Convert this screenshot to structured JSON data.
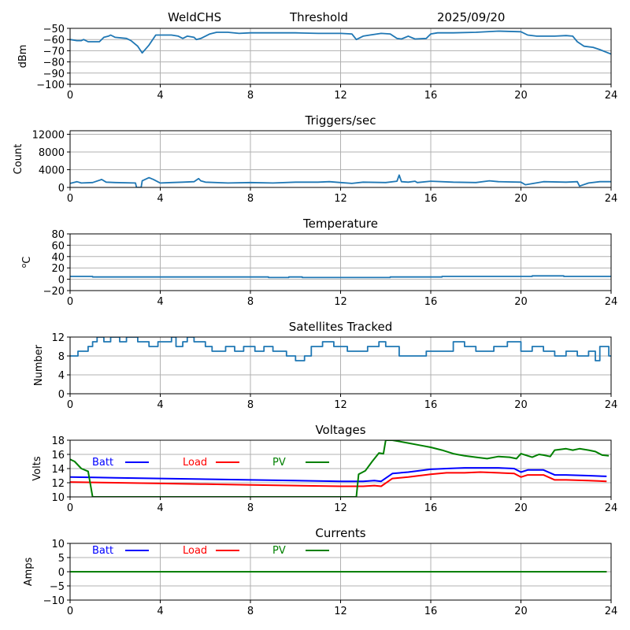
{
  "header": {
    "station": "WeldCHS",
    "mode": "Threshold",
    "date": "2025/09/20"
  },
  "chart_data": [
    {
      "id": "signal",
      "type": "line",
      "title": "",
      "xlabel": "",
      "ylabel": "dBm",
      "xlim": [
        0,
        24
      ],
      "ylim": [
        -100,
        -50
      ],
      "xticks": [
        0,
        4,
        8,
        12,
        16,
        20,
        24
      ],
      "yticks": [
        -100,
        -90,
        -80,
        -70,
        -60,
        -50
      ],
      "ytick_labels": [
        "−100",
        "−90",
        "−80",
        "−70",
        "−60",
        "−50"
      ],
      "grid": true,
      "series": [
        {
          "name": "signal",
          "color": "#1f77b4",
          "x": [
            0,
            0.3,
            0.5,
            0.6,
            0.8,
            1.3,
            1.5,
            1.7,
            1.8,
            2.0,
            2.5,
            2.7,
            3.0,
            3.2,
            3.5,
            3.8,
            4.0,
            4.5,
            4.8,
            5.0,
            5.2,
            5.5,
            5.6,
            5.8,
            6.0,
            6.2,
            6.5,
            7.0,
            7.5,
            8.0,
            9.0,
            10.0,
            11.0,
            12.0,
            12.5,
            12.7,
            13.0,
            13.3,
            13.8,
            14.2,
            14.5,
            14.7,
            15.0,
            15.3,
            15.8,
            16.0,
            16.3,
            17.0,
            18.0,
            19.0,
            20.0,
            20.3,
            20.7,
            21.5,
            22.0,
            22.3,
            22.5,
            22.8,
            23.2,
            23.5,
            24.0
          ],
          "y": [
            -60,
            -61,
            -61,
            -60,
            -62,
            -62,
            -58,
            -57,
            -56,
            -58,
            -59,
            -61,
            -66,
            -72,
            -65,
            -56,
            -56,
            -56,
            -57,
            -59,
            -57,
            -58,
            -60,
            -59,
            -57,
            -55,
            -53.5,
            -53.5,
            -54.5,
            -54,
            -54,
            -54,
            -54.5,
            -54.5,
            -55,
            -60,
            -57,
            -56,
            -54.5,
            -55,
            -59,
            -59.5,
            -57,
            -59.5,
            -59,
            -55,
            -54,
            -54,
            -53.5,
            -52.5,
            -53,
            -56,
            -57,
            -57,
            -56.5,
            -57,
            -62,
            -66,
            -67,
            -69,
            -73
          ]
        }
      ]
    },
    {
      "id": "triggers",
      "type": "line",
      "title": "Triggers/sec",
      "xlabel": "",
      "ylabel": "Count",
      "xlim": [
        0,
        24
      ],
      "ylim": [
        0,
        12800
      ],
      "xticks": [
        0,
        4,
        8,
        12,
        16,
        20,
        24
      ],
      "yticks": [
        0,
        4000,
        8000,
        12000
      ],
      "ytick_labels": [
        "0",
        "4000",
        "8000",
        "12000"
      ],
      "grid": true,
      "series": [
        {
          "name": "triggers",
          "color": "#1f77b4",
          "x": [
            0,
            0.3,
            0.5,
            1.0,
            1.4,
            1.6,
            2.0,
            2.9,
            2.95,
            3.15,
            3.2,
            3.5,
            3.7,
            4.0,
            4.5,
            5.0,
            5.5,
            5.7,
            5.8,
            6.0,
            7.0,
            8.0,
            9.0,
            10.0,
            11.0,
            11.5,
            12.0,
            12.5,
            13.0,
            14.0,
            14.5,
            14.6,
            14.7,
            15.0,
            15.3,
            15.4,
            16.0,
            17.0,
            18.0,
            18.6,
            19.0,
            20.0,
            20.2,
            21.0,
            22.0,
            22.5,
            22.6,
            23.0,
            23.5,
            24.0
          ],
          "y": [
            900,
            1300,
            1000,
            1100,
            1800,
            1200,
            1100,
            1000,
            0,
            0,
            1500,
            2200,
            1800,
            1000,
            1100,
            1200,
            1300,
            2000,
            1500,
            1200,
            1000,
            1100,
            1000,
            1200,
            1200,
            1300,
            1100,
            900,
            1200,
            1100,
            1400,
            2800,
            1300,
            1200,
            1400,
            1100,
            1400,
            1200,
            1100,
            1500,
            1300,
            1200,
            600,
            1300,
            1200,
            1300,
            300,
            1000,
            1300,
            1300
          ]
        }
      ]
    },
    {
      "id": "temperature",
      "type": "line",
      "title": "Temperature",
      "xlabel": "",
      "ylabel": "°C",
      "ylabel_prefix": "o",
      "ylabel_main": "C",
      "xlim": [
        0,
        24
      ],
      "ylim": [
        -20,
        80
      ],
      "xticks": [
        0,
        4,
        8,
        12,
        16,
        20,
        24
      ],
      "yticks": [
        -20,
        0,
        20,
        40,
        60,
        80
      ],
      "ytick_labels": [
        "−20",
        "0",
        "20",
        "40",
        "60",
        "80"
      ],
      "grid": true,
      "series": [
        {
          "name": "temperature",
          "color": "#1f77b4",
          "x": [
            0,
            1.0,
            1.0,
            8.8,
            8.8,
            9.7,
            9.7,
            10.3,
            10.3,
            14.2,
            14.2,
            16.5,
            16.5,
            20.5,
            20.5,
            21.9,
            21.9,
            24
          ],
          "y": [
            5,
            5,
            4,
            4,
            3,
            3,
            4,
            4,
            3,
            3,
            4,
            4,
            5,
            5,
            6,
            6,
            5,
            5
          ]
        }
      ]
    },
    {
      "id": "satellites",
      "type": "line",
      "title": "Satellites Tracked",
      "xlabel": "",
      "ylabel": "Number",
      "xlim": [
        0,
        24
      ],
      "ylim": [
        0,
        12
      ],
      "xticks": [
        0,
        4,
        8,
        12,
        16,
        20,
        24
      ],
      "yticks": [
        0,
        4,
        8,
        12
      ],
      "ytick_labels": [
        "0",
        "4",
        "8",
        "12"
      ],
      "grid": true,
      "series": [
        {
          "name": "satellites",
          "color": "#1f77b4",
          "x": [
            0,
            0.35,
            0.35,
            0.8,
            0.8,
            1.0,
            1.0,
            1.2,
            1.2,
            1.5,
            1.5,
            1.8,
            1.8,
            2.2,
            2.2,
            2.5,
            2.5,
            3.0,
            3.0,
            3.5,
            3.5,
            3.9,
            3.9,
            4.5,
            4.5,
            4.7,
            4.7,
            5.0,
            5.0,
            5.2,
            5.2,
            5.5,
            5.5,
            6.0,
            6.0,
            6.3,
            6.3,
            6.9,
            6.9,
            7.3,
            7.3,
            7.7,
            7.7,
            8.2,
            8.2,
            8.6,
            8.6,
            9.0,
            9.0,
            9.6,
            9.6,
            10.0,
            10.0,
            10.4,
            10.4,
            10.7,
            10.7,
            11.2,
            11.2,
            11.7,
            11.7,
            12.3,
            12.3,
            13.2,
            13.2,
            13.7,
            13.7,
            14.0,
            14.0,
            14.6,
            14.6,
            15.8,
            15.8,
            16.6,
            16.6,
            17.0,
            17.0,
            17.5,
            17.5,
            18.0,
            18.0,
            18.8,
            18.8,
            19.4,
            19.4,
            20.0,
            20.0,
            20.5,
            20.5,
            21.0,
            21.0,
            21.5,
            21.5,
            22.0,
            22.0,
            22.5,
            22.5,
            23.0,
            23.0,
            23.3,
            23.3,
            23.5,
            23.5,
            23.9,
            23.9,
            24.0
          ],
          "y": [
            8,
            8,
            9,
            9,
            10,
            10,
            11,
            11,
            12,
            12,
            11,
            11,
            12,
            12,
            11,
            11,
            12,
            12,
            11,
            11,
            10,
            10,
            11,
            11,
            12,
            12,
            10,
            10,
            11,
            11,
            12,
            12,
            11,
            11,
            10,
            10,
            9,
            9,
            10,
            10,
            9,
            9,
            10,
            10,
            9,
            9,
            10,
            10,
            9,
            9,
            8,
            8,
            7,
            7,
            8,
            8,
            10,
            10,
            11,
            11,
            10,
            10,
            9,
            9,
            10,
            10,
            11,
            11,
            10,
            10,
            8,
            8,
            9,
            9,
            9,
            9,
            11,
            11,
            10,
            10,
            9,
            9,
            10,
            10,
            11,
            11,
            9,
            9,
            10,
            10,
            9,
            9,
            8,
            8,
            9,
            9,
            8,
            8,
            9,
            9,
            7,
            7,
            10,
            10,
            8,
            8
          ]
        }
      ]
    },
    {
      "id": "voltages",
      "type": "line",
      "title": "Voltages",
      "xlabel": "",
      "ylabel": "Volts",
      "xlim": [
        0,
        24
      ],
      "ylim": [
        10,
        18
      ],
      "xticks": [
        0,
        4,
        8,
        12,
        16,
        20,
        24
      ],
      "yticks": [
        10,
        12,
        14,
        16,
        18
      ],
      "ytick_labels": [
        "10",
        "12",
        "14",
        "16",
        "18"
      ],
      "grid": true,
      "legend": {
        "placement": "top-left-inline",
        "entries": [
          "Batt",
          "Load",
          "PV"
        ]
      },
      "series": [
        {
          "name": "Batt",
          "color": "#0000ff",
          "x": [
            0,
            2,
            4,
            6,
            8,
            10,
            12,
            13.0,
            13.5,
            13.8,
            14.3,
            15.0,
            16.0,
            16.7,
            17.5,
            18.2,
            19.0,
            19.7,
            20.0,
            20.3,
            21.0,
            21.5,
            22.0,
            23.0,
            23.8
          ],
          "y": [
            12.8,
            12.7,
            12.6,
            12.5,
            12.4,
            12.3,
            12.2,
            12.2,
            12.3,
            12.2,
            13.3,
            13.5,
            13.9,
            14.0,
            14.1,
            14.1,
            14.1,
            14.0,
            13.5,
            13.8,
            13.8,
            13.1,
            13.1,
            13.0,
            12.9
          ]
        },
        {
          "name": "Load",
          "color": "#ff0000",
          "x": [
            0,
            2,
            4,
            6,
            8,
            10,
            12,
            13.0,
            13.5,
            13.8,
            14.3,
            15.0,
            16.0,
            16.7,
            17.5,
            18.2,
            19.0,
            19.7,
            20.0,
            20.3,
            21.0,
            21.5,
            22.0,
            23.0,
            23.8
          ],
          "y": [
            12.1,
            12.0,
            11.9,
            11.8,
            11.7,
            11.6,
            11.5,
            11.5,
            11.6,
            11.5,
            12.6,
            12.8,
            13.2,
            13.4,
            13.4,
            13.5,
            13.4,
            13.3,
            12.8,
            13.1,
            13.1,
            12.4,
            12.4,
            12.3,
            12.2
          ]
        },
        {
          "name": "PV",
          "color": "#008000",
          "x": [
            0,
            0.2,
            0.5,
            0.8,
            1.0,
            12.7,
            12.8,
            13.1,
            13.4,
            13.7,
            13.9,
            14.0,
            14.3,
            15.0,
            15.5,
            16.0,
            16.5,
            17.0,
            17.5,
            18.0,
            18.5,
            19.0,
            19.5,
            19.8,
            20.0,
            20.5,
            20.8,
            21.0,
            21.3,
            21.5,
            22.0,
            22.3,
            22.6,
            23.0,
            23.3,
            23.6,
            23.9
          ],
          "y": [
            15.3,
            15.0,
            14.0,
            13.6,
            10.0,
            10.0,
            13.2,
            13.7,
            15.0,
            16.2,
            16.1,
            18.0,
            18.0,
            17.6,
            17.3,
            17.0,
            16.6,
            16.1,
            15.8,
            15.6,
            15.4,
            15.7,
            15.6,
            15.4,
            16.1,
            15.6,
            16.0,
            15.9,
            15.7,
            16.6,
            16.8,
            16.6,
            16.8,
            16.6,
            16.4,
            15.9,
            15.8
          ]
        }
      ]
    },
    {
      "id": "currents",
      "type": "line",
      "title": "Currents",
      "xlabel": "",
      "ylabel": "Amps",
      "xlim": [
        0,
        24
      ],
      "ylim": [
        -10,
        10
      ],
      "xticks": [
        0,
        4,
        8,
        12,
        16,
        20,
        24
      ],
      "yticks": [
        -10,
        -5,
        0,
        5,
        10
      ],
      "ytick_labels": [
        "−10",
        "−5",
        "0",
        "5",
        "10"
      ],
      "grid": true,
      "legend": {
        "placement": "top-left-inline",
        "entries": [
          "Batt",
          "Load",
          "PV"
        ]
      },
      "series": [
        {
          "name": "Batt",
          "color": "#0000ff",
          "x": [
            0,
            23.8
          ],
          "y": [
            0,
            0
          ]
        },
        {
          "name": "Load",
          "color": "#ff0000",
          "x": [
            0,
            23.8
          ],
          "y": [
            0,
            0
          ]
        },
        {
          "name": "PV",
          "color": "#008000",
          "x": [
            0,
            23.8
          ],
          "y": [
            0,
            0
          ]
        }
      ]
    }
  ]
}
